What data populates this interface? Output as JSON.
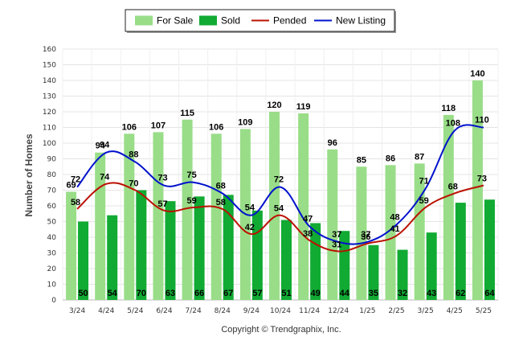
{
  "chart_data": {
    "type": "bar",
    "categories": [
      "3/24",
      "4/24",
      "5/24",
      "6/24",
      "7/24",
      "8/24",
      "9/24",
      "10/24",
      "11/24",
      "12/24",
      "1/25",
      "2/25",
      "3/25",
      "4/25",
      "5/25"
    ],
    "series": [
      {
        "name": "For Sale",
        "kind": "bar",
        "color": "#99dd88",
        "values": [
          69,
          94,
          106,
          107,
          115,
          106,
          109,
          120,
          119,
          96,
          85,
          86,
          87,
          118,
          140
        ]
      },
      {
        "name": "Sold",
        "kind": "bar",
        "color": "#11aa33",
        "values": [
          50,
          54,
          70,
          63,
          66,
          67,
          57,
          51,
          49,
          44,
          35,
          32,
          43,
          62,
          64
        ]
      },
      {
        "name": "Pended",
        "kind": "line",
        "color": "#bb1100",
        "values": [
          58,
          74,
          70,
          57,
          59,
          58,
          42,
          54,
          38,
          31,
          36,
          41,
          59,
          68,
          73
        ]
      },
      {
        "name": "New Listing",
        "kind": "line",
        "color": "#0011cc",
        "values": [
          72,
          94,
          88,
          73,
          75,
          68,
          54,
          72,
          47,
          37,
          37,
          48,
          71,
          108,
          110
        ]
      }
    ],
    "ylabel": "Number of Homes",
    "xlabel": "",
    "ylim": [
      0,
      160
    ],
    "yticks": [
      0,
      10,
      20,
      30,
      40,
      50,
      60,
      70,
      80,
      90,
      100,
      110,
      120,
      130,
      140,
      150,
      160
    ],
    "grid": true,
    "legend_position": "top-center"
  },
  "footer": {
    "copyright": "Copyright © Trendgraphix, Inc."
  }
}
